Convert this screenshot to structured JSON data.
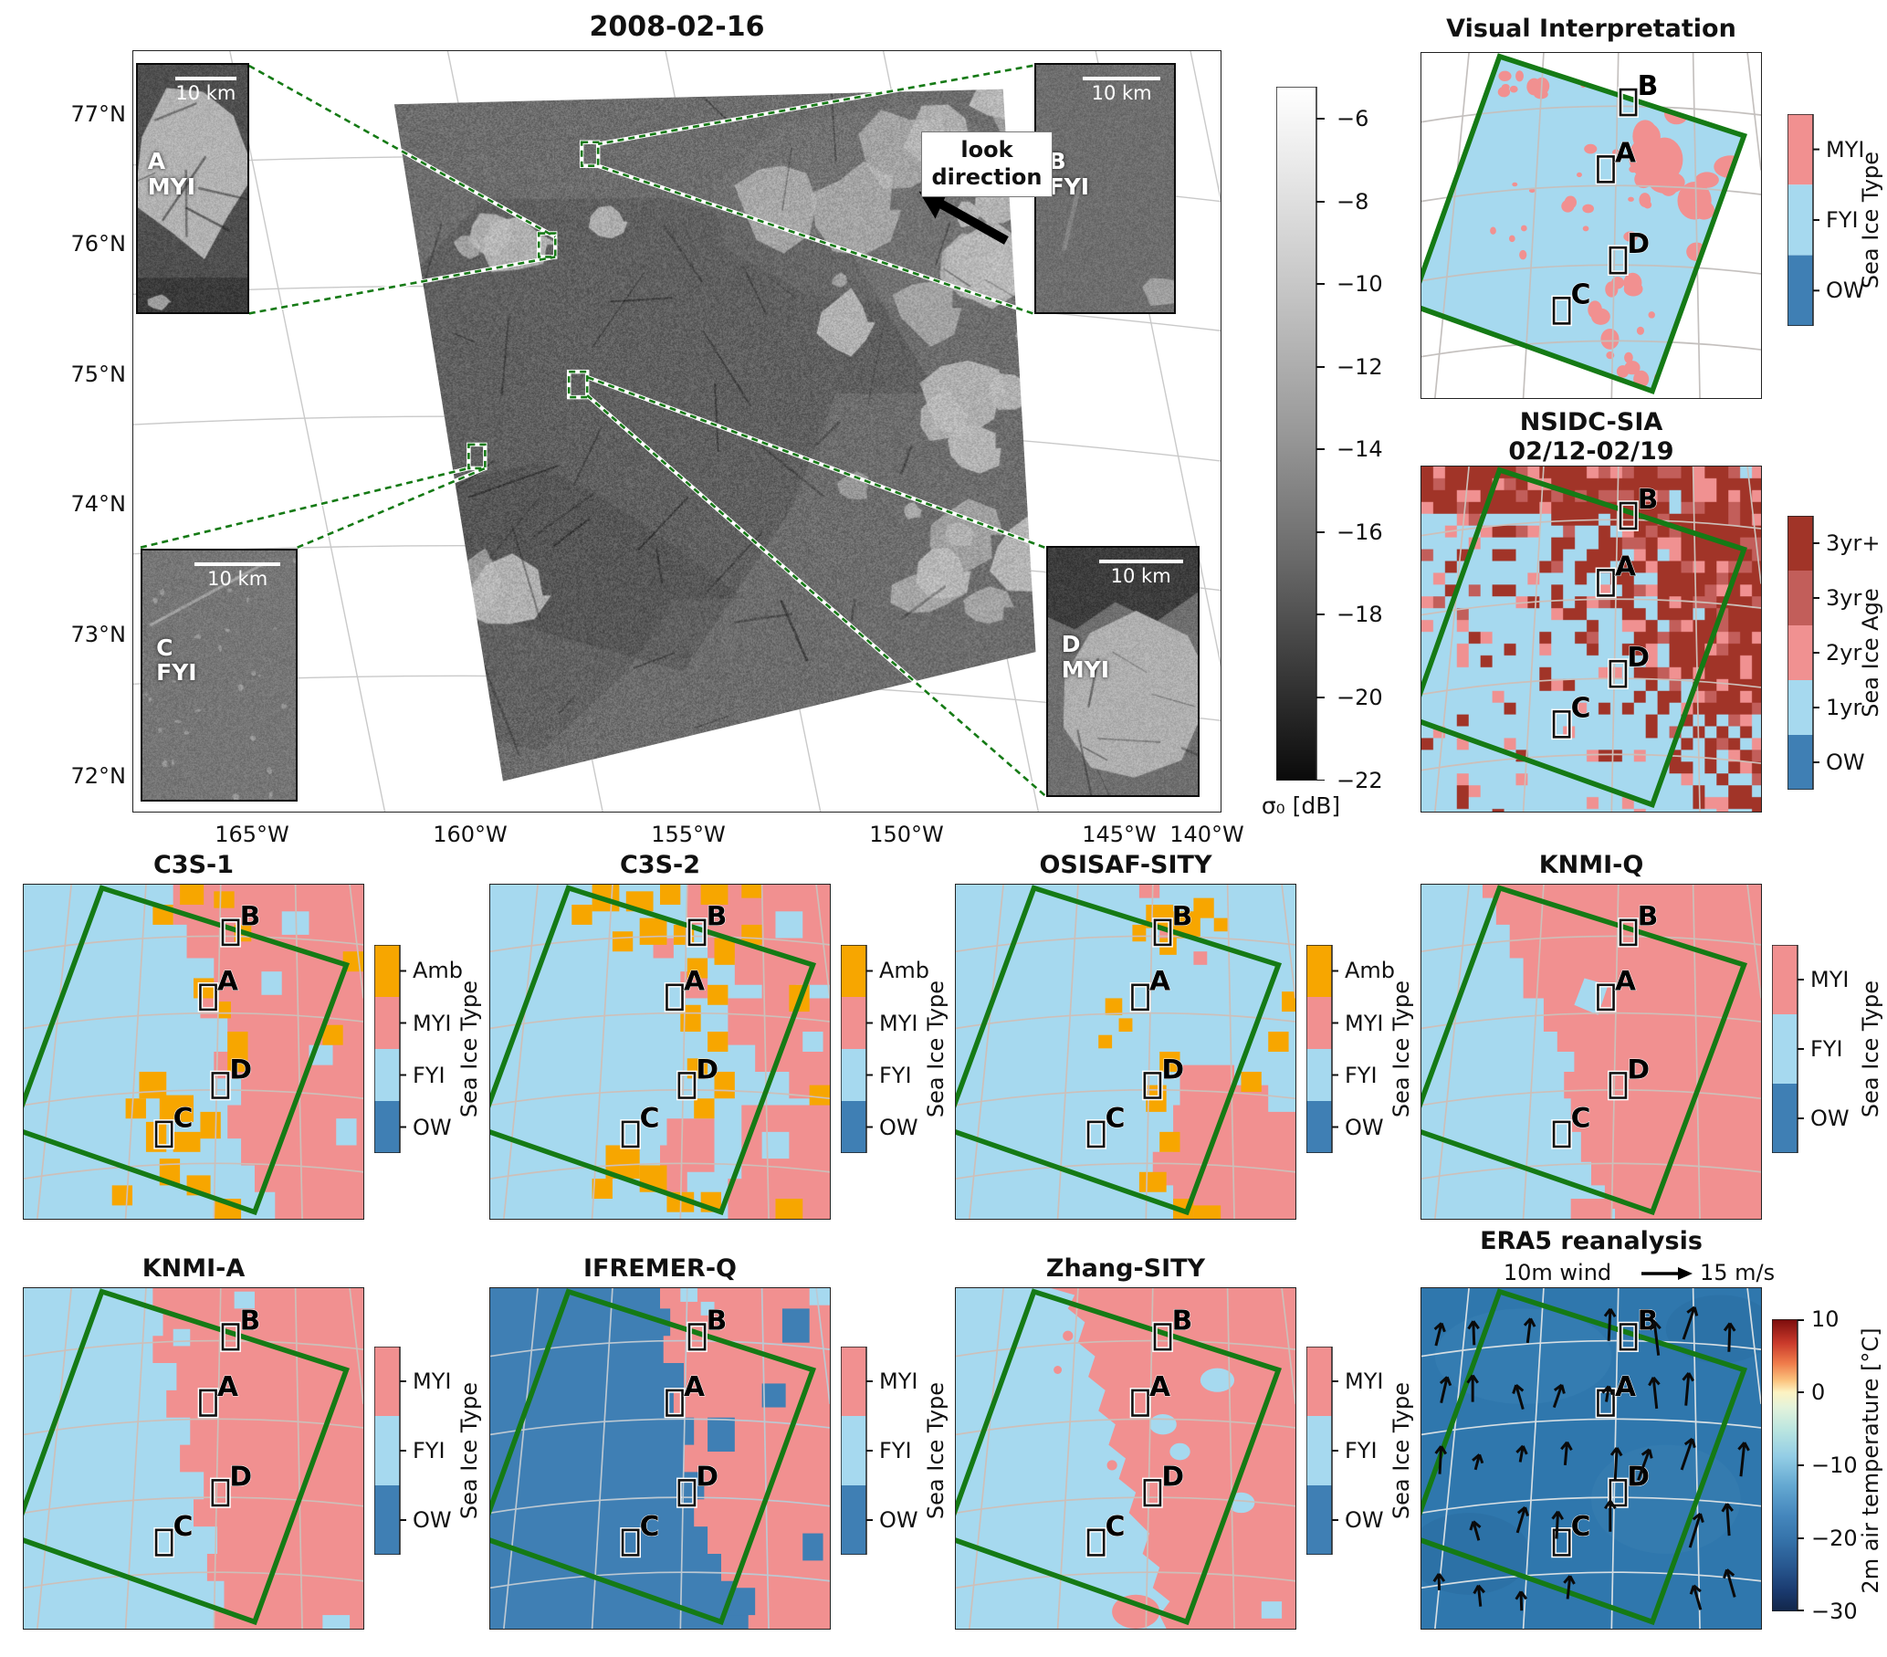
{
  "colors": {
    "myi": "#f19090",
    "fyi": "#a6d9ef",
    "ow": "#3f7fb4",
    "amb": "#f7a600",
    "age_3yr_plus": "#a13428",
    "age_3yr": "#c25e5a",
    "age_2yr": "#f09191",
    "age_1yr": "#a6d9ef",
    "age_ow": "#3f7fb4",
    "outline_green": "#157a15",
    "era5_map": "#2f77ad"
  },
  "markers": {
    "a": "A",
    "b": "B",
    "c": "C",
    "d": "D"
  },
  "legend_type": {
    "label": "Sea Ice Type",
    "amb": "Amb",
    "myi": "MYI",
    "fyi": "FYI",
    "ow": "OW"
  },
  "legend_age": {
    "label": "Sea Ice Age",
    "y3p": "3yr+",
    "y3": "3yr",
    "y2": "2yr",
    "y1": "1yr",
    "ow": "OW"
  },
  "main_panel": {
    "title": "2008-02-16",
    "look_line1": "look",
    "look_line2": "direction",
    "lat_ticks": [
      "77°N",
      "76°N",
      "75°N",
      "74°N",
      "73°N",
      "72°N"
    ],
    "lon_ticks": [
      "165°W",
      "160°W",
      "155°W",
      "150°W",
      "145°W",
      "140°W"
    ],
    "colorbar": {
      "label": "σ₀ [dB]",
      "ticks": [
        "−6",
        "−8",
        "−10",
        "−12",
        "−14",
        "−16",
        "−18",
        "−20",
        "−22"
      ]
    },
    "insets": {
      "a": {
        "letter": "A",
        "ice_type": "MYI",
        "scale": "10 km"
      },
      "b": {
        "letter": "B",
        "ice_type": "FYI",
        "scale": "10 km"
      },
      "c": {
        "letter": "C",
        "ice_type": "FYI",
        "scale": "10 km"
      },
      "d": {
        "letter": "D",
        "ice_type": "MYI",
        "scale": "10 km"
      }
    }
  },
  "panels": {
    "visual": {
      "title": "Visual Interpretation"
    },
    "nsidc": {
      "title_line1": "NSIDC-SIA",
      "title_line2": "02/12-02/19"
    },
    "c3s1": {
      "title": "C3S-1"
    },
    "c3s2": {
      "title": "C3S-2"
    },
    "osisaf": {
      "title": "OSISAF-SITY"
    },
    "knmiq": {
      "title": "KNMI-Q"
    },
    "knmia": {
      "title": "KNMI-A"
    },
    "ifremerq": {
      "title": "IFREMER-Q"
    },
    "zhang": {
      "title": "Zhang-SITY"
    },
    "era5": {
      "title": "ERA5 reanalysis",
      "subtitle": "10m wind",
      "wind_ref": "15 m/s",
      "colorbar": {
        "label": "2m air temperature [°C]",
        "ticks": [
          "10",
          "0",
          "−10",
          "−20",
          "−30"
        ]
      }
    }
  }
}
